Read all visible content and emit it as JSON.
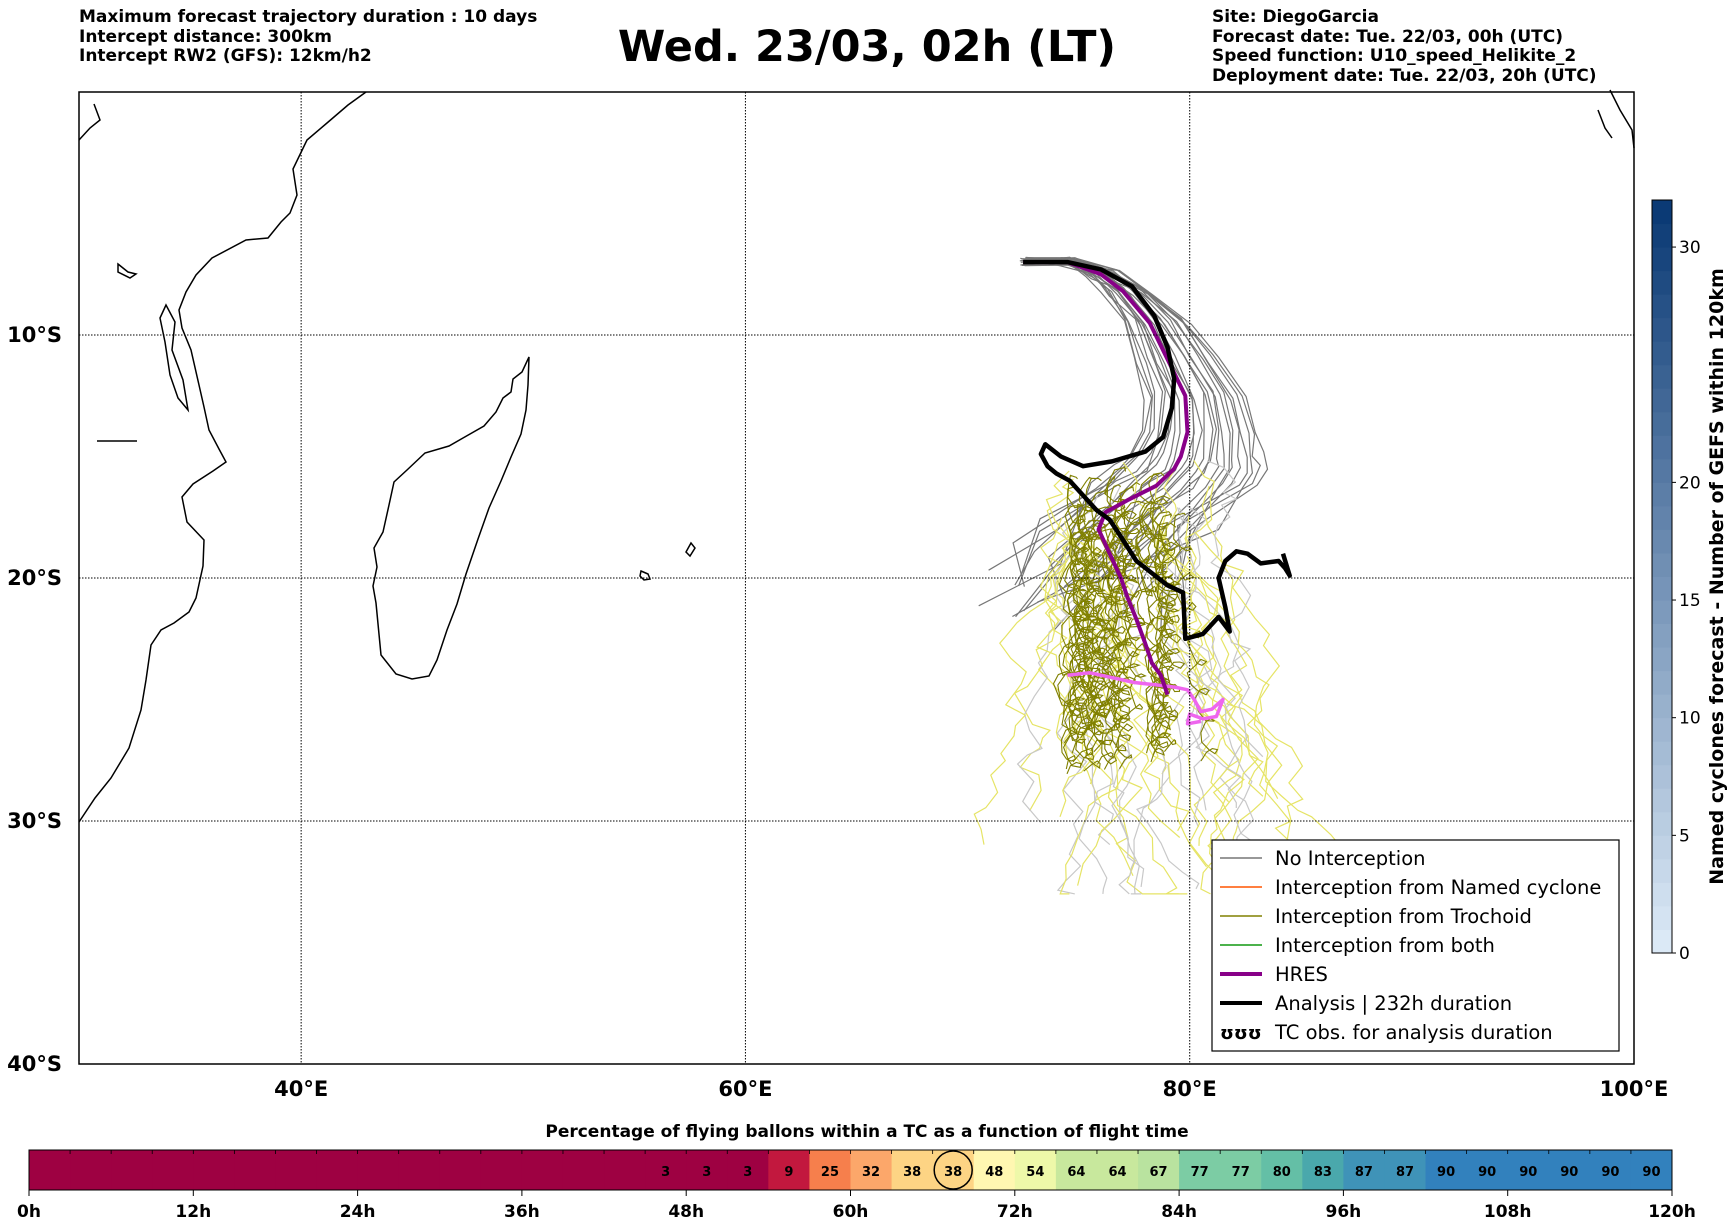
{
  "header": {
    "left": [
      "Maximum forecast trajectory duration : 10 days",
      "Intercept distance: 300km",
      "Intercept RW2 (GFS):  12km/h2"
    ],
    "title": "Wed. 23/03, 02h (LT)",
    "right": [
      "Site: DiegoGarcia",
      "Forecast date: Tue. 22/03, 00h (UTC)",
      "Speed function: U10_speed_Helikite_2",
      "Deployment date: Tue. 22/03, 20h (UTC)"
    ]
  },
  "map": {
    "lon_range": [
      30,
      100
    ],
    "lat_range": [
      -40,
      0
    ],
    "lon_ticks": [
      {
        "v": 40,
        "label": "40°E"
      },
      {
        "v": 60,
        "label": "60°E"
      },
      {
        "v": 80,
        "label": "80°E"
      },
      {
        "v": 100,
        "label": "100°E"
      }
    ],
    "lat_ticks": [
      {
        "v": -10,
        "label": "10°S"
      },
      {
        "v": -20,
        "label": "20°S"
      },
      {
        "v": -30,
        "label": "30°S"
      },
      {
        "v": -40,
        "label": "40°S"
      }
    ]
  },
  "legend": {
    "items": [
      {
        "label": "No Interception",
        "color": "#777777",
        "kind": "line",
        "width": 1.5
      },
      {
        "label": "Interception from Named cyclone",
        "color": "#ff5500",
        "kind": "line",
        "width": 1.5
      },
      {
        "label": "Interception from Trochoid",
        "color": "#808000",
        "kind": "line",
        "width": 1.5
      },
      {
        "label": "Interception from both",
        "color": "#119911",
        "kind": "line",
        "width": 1.5
      },
      {
        "label": "HRES",
        "color": "#880088",
        "kind": "line",
        "width": 4
      },
      {
        "label": "Analysis | 232h duration",
        "color": "#000000",
        "kind": "line",
        "width": 4
      },
      {
        "label": "TC obs. for analysis duration",
        "color": "#000000",
        "kind": "symbol",
        "symbol": "ʊʊʊ"
      }
    ]
  },
  "colorbar_right": {
    "label": "Named cyclones forecast - Number of GEFS within 120km",
    "range": [
      0,
      32
    ],
    "ticks": [
      0,
      5,
      10,
      15,
      20,
      30
    ],
    "colors": [
      "#dbe9f6",
      "#0b3a75"
    ]
  },
  "chart_data": {
    "type": "line",
    "title": "Wed. 23/03, 02h (LT)",
    "xlabel": "",
    "ylabel": "",
    "xlim": [
      30,
      100
    ],
    "ylim": [
      -40,
      0
    ],
    "grid": true,
    "legend_position": "lower-right",
    "series": [
      {
        "name": "HRES",
        "color": "#880088",
        "x": [
          72.5,
          74.5,
          76.0,
          77.0,
          78.2,
          79.0,
          79.8,
          79.9,
          79.6,
          79.3,
          78.5,
          77.2,
          76.2,
          75.9,
          76.4,
          76.9,
          77.2,
          77.6,
          78.0,
          78.3,
          78.7,
          79.0
        ],
        "y": [
          -7.0,
          -7.0,
          -7.5,
          -8.2,
          -9.5,
          -11.0,
          -12.5,
          -14.0,
          -15.0,
          -15.5,
          -16.2,
          -16.8,
          -17.3,
          -18.0,
          -19.0,
          -20.0,
          -20.8,
          -21.7,
          -22.7,
          -23.5,
          -24.0,
          -24.8
        ]
      },
      {
        "name": "Analysis | 232h duration",
        "color": "#000000",
        "x": [
          72.5,
          74.5,
          76.0,
          77.4,
          78.4,
          79.0,
          79.3,
          79.2,
          78.8,
          78.0,
          76.5,
          75.2,
          74.2,
          73.5,
          73.3,
          73.6,
          74.0,
          74.6,
          75.2,
          75.8,
          76.4,
          76.9,
          77.6,
          78.3,
          79.0,
          79.7,
          79.8,
          80.6,
          81.3,
          81.8,
          81.6,
          81.3,
          81.6,
          82.1,
          82.6,
          83.2,
          84.0,
          84.3,
          84.5,
          84.2
        ],
        "y": [
          -7.0,
          -7.0,
          -7.3,
          -8.0,
          -9.2,
          -10.5,
          -11.8,
          -13.0,
          -14.2,
          -14.8,
          -15.2,
          -15.4,
          -15.0,
          -14.5,
          -14.9,
          -15.4,
          -15.7,
          -16.0,
          -16.6,
          -17.2,
          -17.6,
          -18.3,
          -19.3,
          -19.8,
          -20.3,
          -20.6,
          -22.5,
          -22.3,
          -21.6,
          -22.2,
          -21.2,
          -20.0,
          -19.3,
          -18.9,
          -19.0,
          -19.4,
          -19.3,
          -19.6,
          -19.9,
          -19.0
        ]
      },
      {
        "name": "TC obs. for analysis duration",
        "color": "#ee66ee",
        "x": [
          74.5,
          75.5,
          76.5,
          77.5,
          78.5,
          79.4,
          79.9,
          80.2,
          80.5,
          81.0,
          81.5,
          81.2,
          80.6,
          80.0,
          79.9,
          80.5
        ],
        "y": [
          -24.0,
          -23.9,
          -24.1,
          -24.3,
          -24.4,
          -24.5,
          -24.6,
          -25.0,
          -25.5,
          -25.4,
          -25.0,
          -25.7,
          -25.8,
          -25.6,
          -26.0,
          -25.9
        ]
      }
    ]
  },
  "flight_colorbar": {
    "title": "Percentage of flying ballons within a TC as a function of flight time",
    "ticks": [
      "0h",
      "12h",
      "24h",
      "36h",
      "48h",
      "60h",
      "72h",
      "84h",
      "96h",
      "108h",
      "120h"
    ],
    "values": [
      "",
      "",
      "",
      "",
      "",
      "",
      "",
      "",
      "",
      "",
      "",
      "",
      "",
      "",
      "",
      "3",
      "3",
      "3",
      "9",
      "25",
      "32",
      "38",
      "38",
      "48",
      "54",
      "64",
      "64",
      "67",
      "77",
      "77",
      "80",
      "83",
      "87",
      "87",
      "90",
      "90",
      "90",
      "90",
      "90",
      "90"
    ],
    "current_index": 22
  }
}
